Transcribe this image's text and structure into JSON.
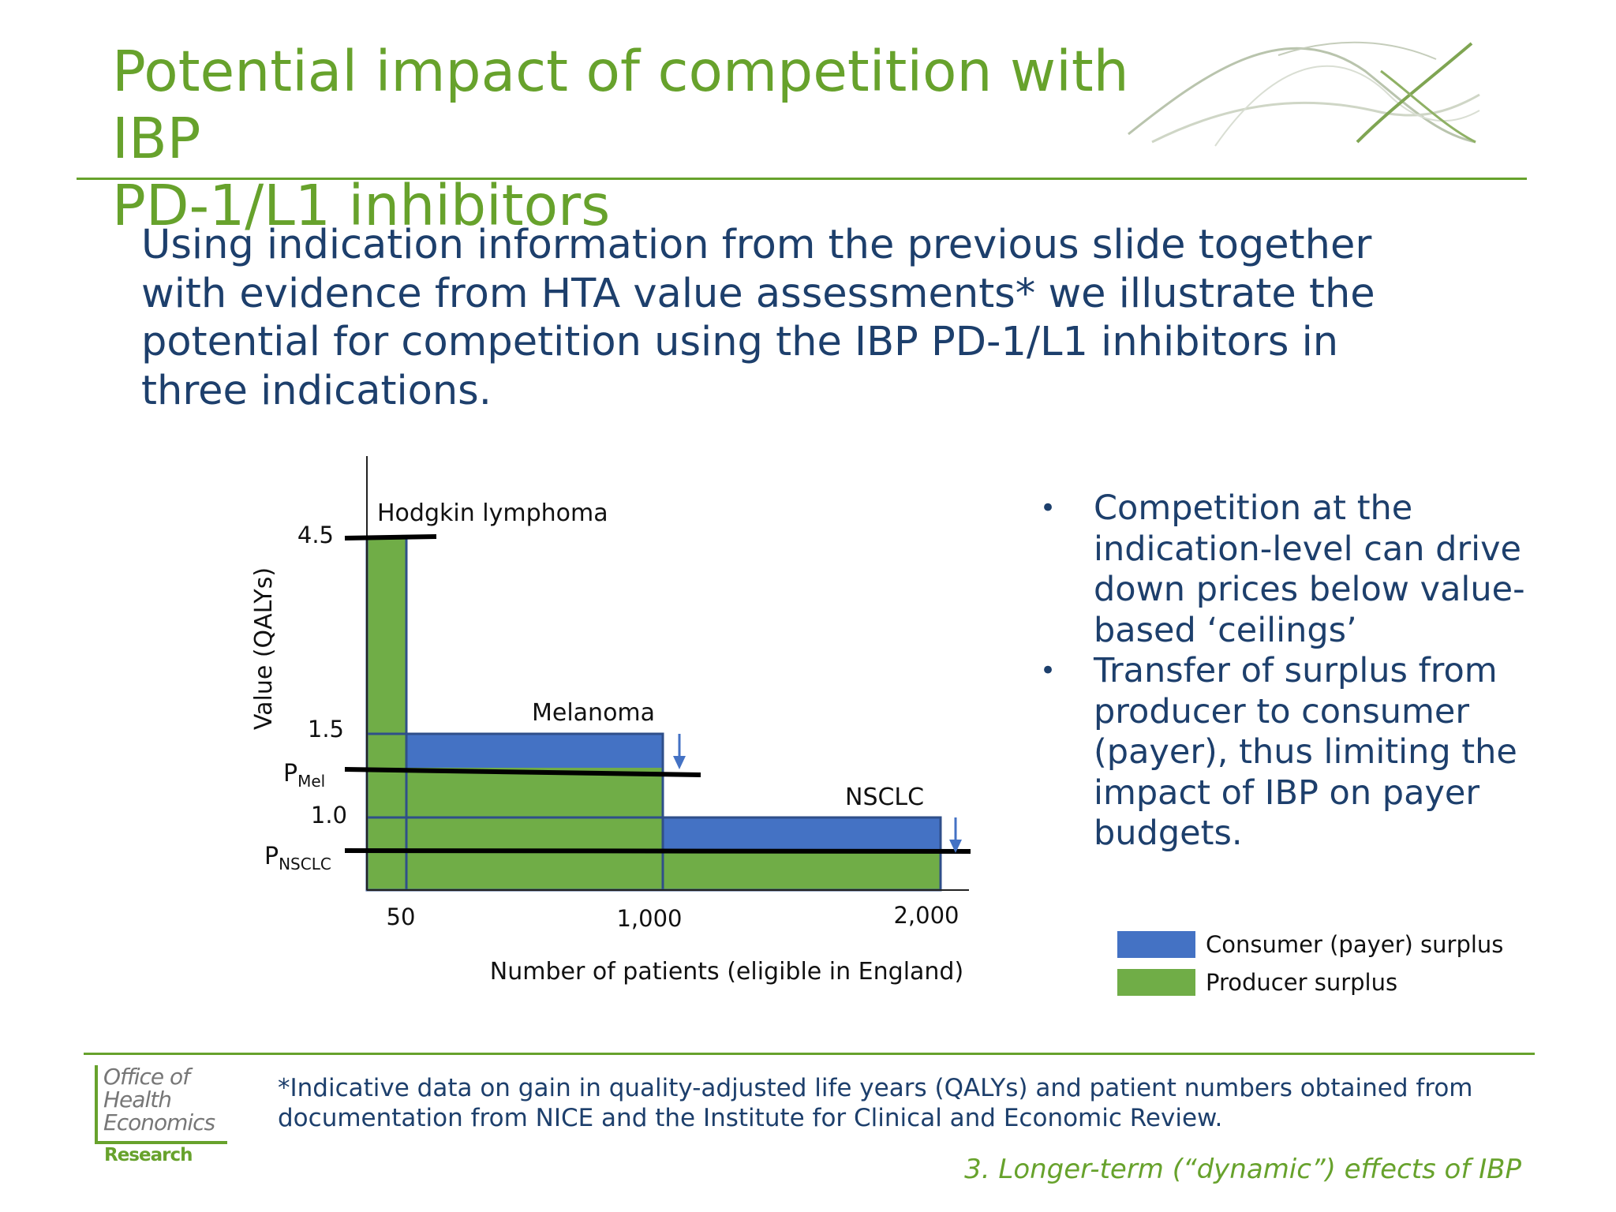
{
  "slide": {
    "title_line1": "Potential impact of competition with IBP",
    "title_line2": "PD-1/L1 inhibitors",
    "intro": "Using indication information from the previous slide together with evidence from HTA value assessments* we illustrate the potential for competition using the IBP PD-1/L1 inhibitors in three indications.",
    "bullets": [
      "Competition at the indication-level can drive down prices below value-based ‘ceilings’",
      "Transfer of  surplus from producer to consumer (payer), thus limiting the impact of IBP on payer budgets."
    ],
    "bullet_char": "•",
    "legend": [
      {
        "label": "Consumer (payer) surplus",
        "color": "#4472c4"
      },
      {
        "label": "Producer surplus",
        "color": "#70ad47"
      }
    ],
    "logo": {
      "line1": "Office of",
      "line2": "Health",
      "line3": "Economics",
      "line4": "Research"
    },
    "footnote": "*Indicative data on gain in quality-adjusted life years (QALYs) and patient numbers obtained from documentation from NICE and the Institute for Clinical and Economic Review.",
    "section": "3. Longer-term (“dynamic”) effects of IBP",
    "colors": {
      "green": "#67a22c",
      "navy": "#1d3f6c",
      "blue": "#4472c4",
      "producer_green": "#70ad47"
    }
  },
  "chart_data": {
    "type": "step-area",
    "xlabel": "Number of patients (eligible in England)",
    "ylabel": "Value (QALYs)",
    "x_ticks": [
      "50",
      "1,000",
      "2,000"
    ],
    "y_ticks": [
      "4.5",
      "1.5",
      "1.0"
    ],
    "price_labels": [
      {
        "main": "P",
        "sub": "Mel"
      },
      {
        "main": "P",
        "sub": "NSCLC"
      }
    ],
    "indications": [
      {
        "name": "Hodgkin lymphoma",
        "patients_to": 50,
        "value": 4.5
      },
      {
        "name": "Melanoma",
        "patients_to": 1000,
        "value": 1.5
      },
      {
        "name": "NSCLC",
        "patients_to": 2000,
        "value": 1.0
      }
    ]
  }
}
